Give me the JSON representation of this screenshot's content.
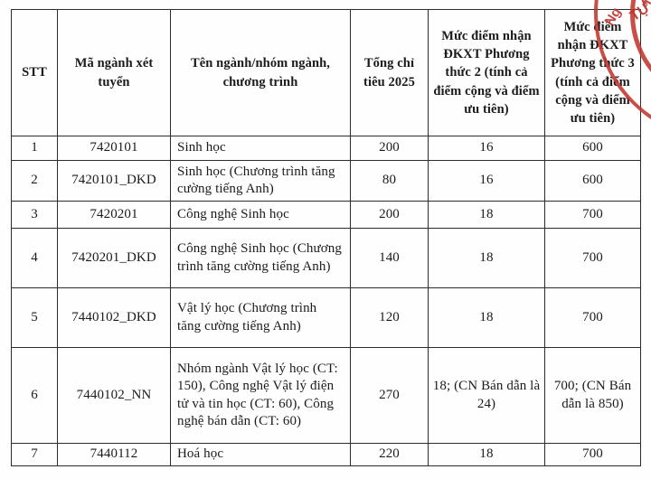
{
  "table": {
    "columns": [
      {
        "key": "stt",
        "label": "STT"
      },
      {
        "key": "code",
        "label": "Mã ngành xét tuyển"
      },
      {
        "key": "name",
        "label": "Tên ngành/nhóm ngành, chương trình"
      },
      {
        "key": "quota",
        "label": "Tổng chỉ tiêu 2025"
      },
      {
        "key": "method2",
        "label": "Mức điểm nhận ĐKXT Phương thức 2 (tính cả điểm cộng và điểm ưu tiên)"
      },
      {
        "key": "method3",
        "label": "Mức điểm nhận ĐKXT Phương thức 3 (tính cả điểm cộng và điểm ưu tiên)"
      }
    ],
    "rows": [
      [
        "1",
        "7420101",
        "Sinh học",
        "200",
        "16",
        "600"
      ],
      [
        "2",
        "7420101_DKD",
        "Sinh học (Chương trình tăng cường tiếng Anh)",
        "80",
        "16",
        "600"
      ],
      [
        "3",
        "7420201",
        "Công nghệ Sinh học",
        "200",
        "18",
        "700"
      ],
      [
        "4",
        "7420201_DKD",
        "Công nghệ Sinh học (Chương trình tăng cường tiếng Anh)",
        "140",
        "18",
        "700"
      ],
      [
        "5",
        "7440102_DKD",
        "Vật lý học (Chương trình tăng cường tiếng Anh)",
        "120",
        "18",
        "700"
      ],
      [
        "6",
        "7440102_NN",
        "Nhóm ngành Vật lý học (CT: 150), Công nghệ Vật lý điện tử và tin học (CT: 60), Công nghệ bán dẫn (CT: 60)",
        "270",
        "18; (CN Bán dẫn là 24)",
        "700; (CN Bán dẫn là 850)"
      ],
      [
        "7",
        "7440112",
        "Hoá học",
        "220",
        "18",
        "700"
      ]
    ]
  },
  "stamp": {
    "color": "#c0362e",
    "fragments": {
      "f1": "Ng",
      "f2": "TỰ",
      "f3": "KH"
    }
  }
}
